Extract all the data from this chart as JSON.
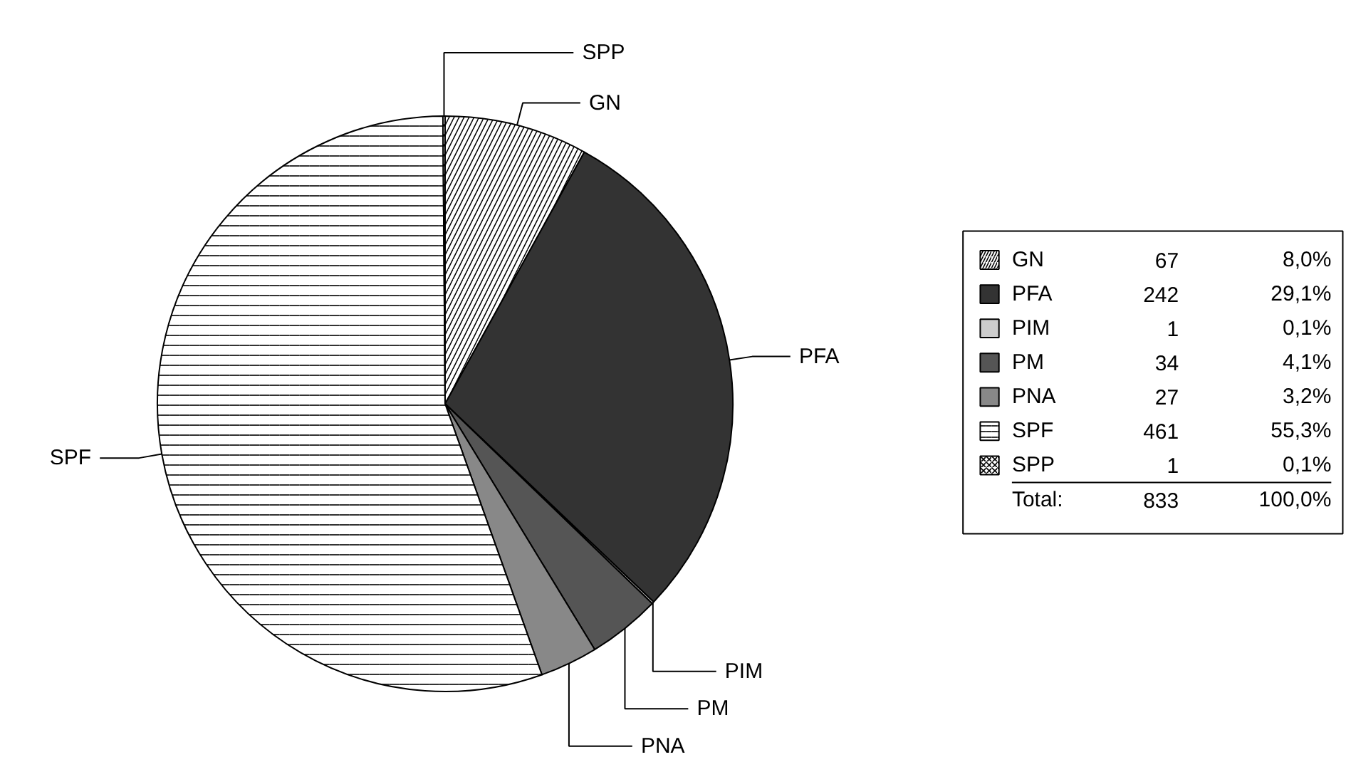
{
  "chart_data": {
    "type": "pie",
    "categories": [
      "GN",
      "PFA",
      "PIM",
      "PM",
      "PNA",
      "SPF",
      "SPP"
    ],
    "values": [
      67,
      242,
      1,
      34,
      27,
      461,
      1
    ],
    "colors": [
      "#ffffff",
      "#333333",
      "#cccccc",
      "#555555",
      "#888888",
      "#ffffff",
      "#ffffff"
    ],
    "data_labels": true,
    "annotations": [
      "8,0%",
      "29,1%",
      "0,1%",
      "4,1%",
      "3,2%",
      "55,3%",
      "0,1%",
      "Total:",
      "833",
      "100,0%"
    ],
    "legend": "right"
  }
}
